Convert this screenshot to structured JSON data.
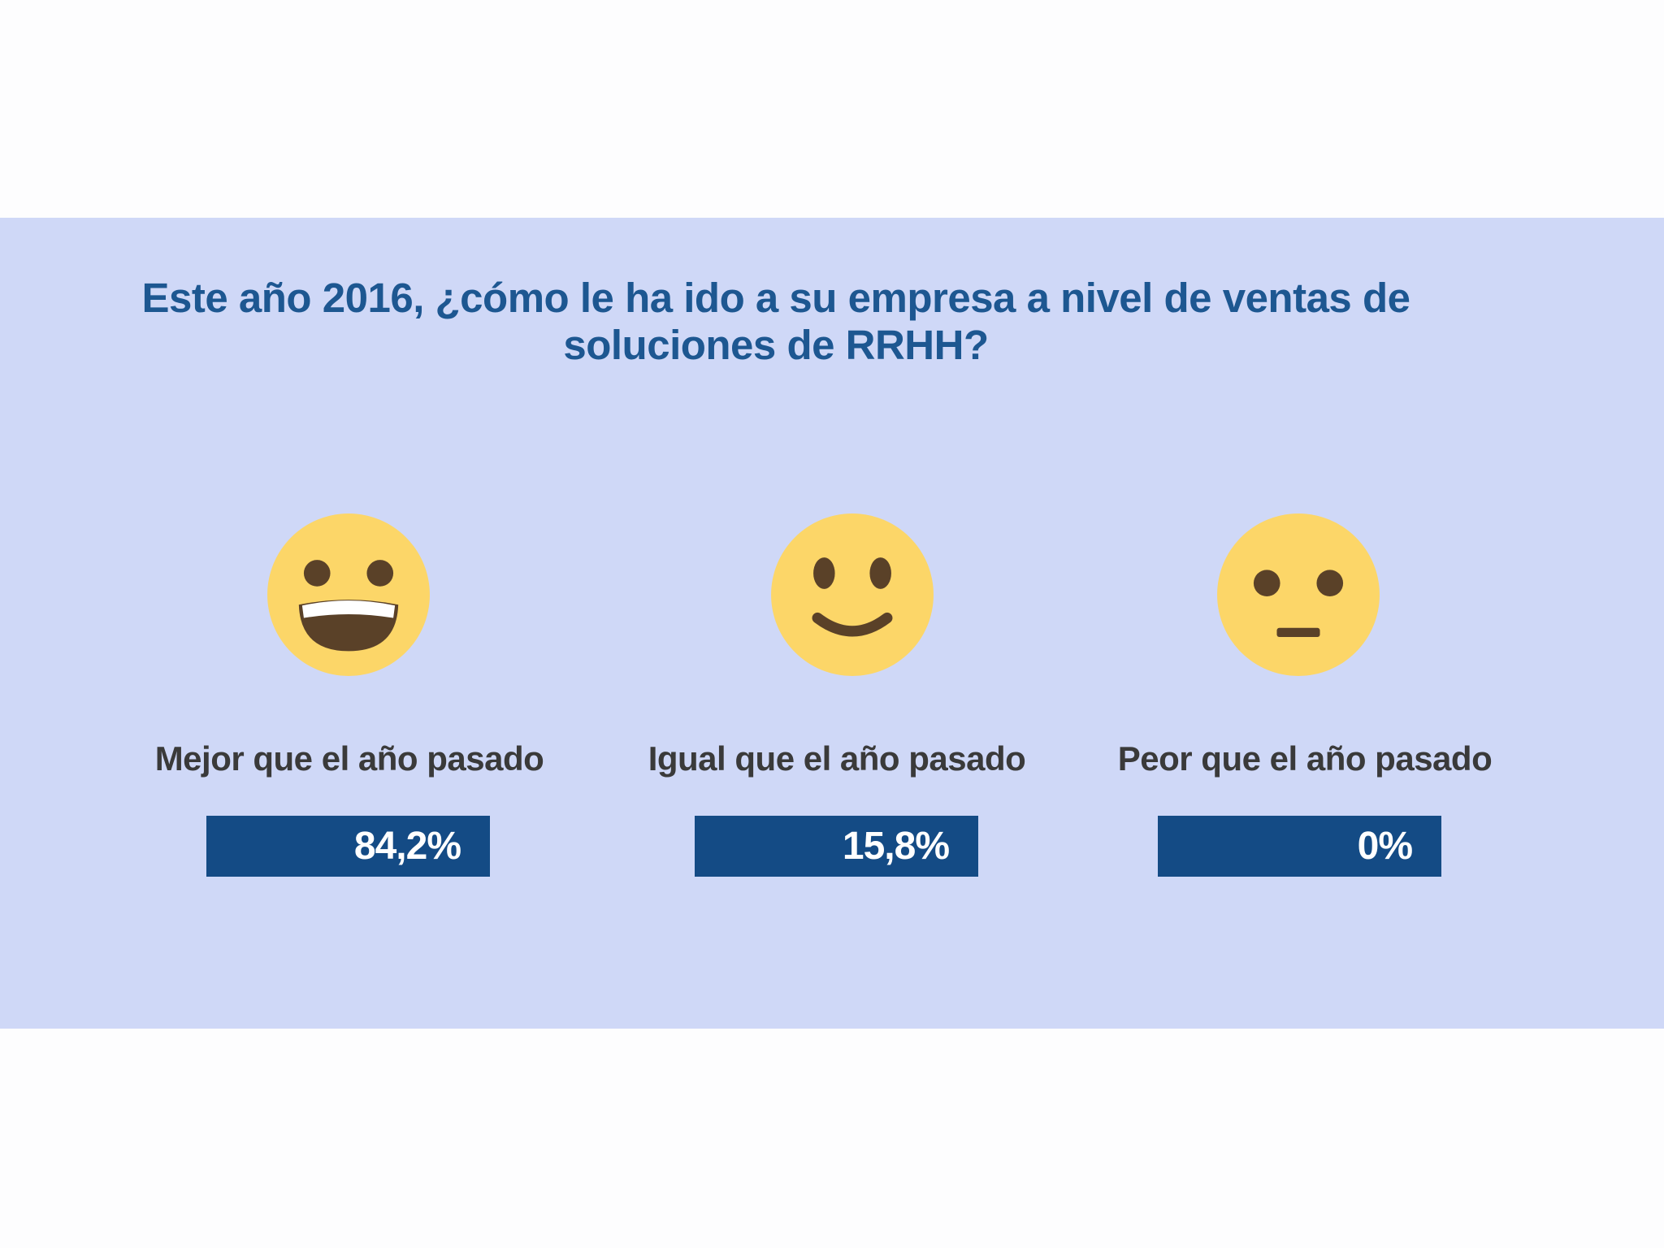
{
  "title": {
    "line1": "Este año 2016, ¿cómo le ha ido a su empresa a nivel de ventas de",
    "line2": "soluciones de RRHH?"
  },
  "options": [
    {
      "label": "Mejor que el año pasado",
      "value_text": "84,2%",
      "value": 84.2,
      "icon": "grinning-face-icon"
    },
    {
      "label": "Igual que el año pasado",
      "value_text": "15,8%",
      "value": 15.8,
      "icon": "slightly-smiling-face-icon"
    },
    {
      "label": "Peor que el año pasado",
      "value_text": "0%",
      "value": 0,
      "icon": "neutral-face-icon"
    }
  ],
  "colors": {
    "band": "#cfd8f7",
    "title": "#1d5791",
    "bar": "#144b85",
    "face": "#fcd668"
  }
}
